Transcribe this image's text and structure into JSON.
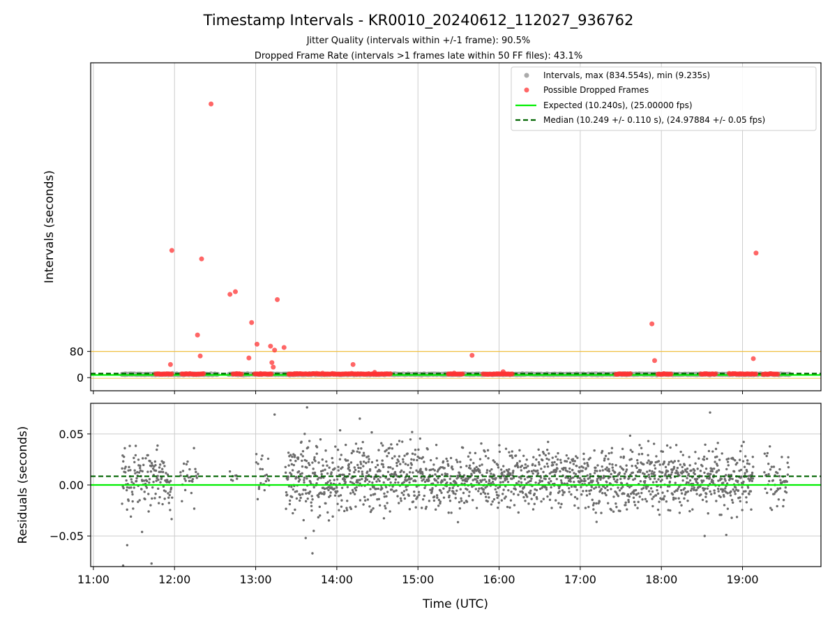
{
  "figure": {
    "title": "Timestamp Intervals - KR0010_20240612_112027_936762",
    "subtitle_1": "Jitter Quality (intervals within +/-1 frame): 90.5%",
    "subtitle_2": "Dropped Frame Rate (intervals >1 frames late within 50 FF files): 43.1%"
  },
  "colors": {
    "interval_gray": "#aaaaaa",
    "dropped_red": "#ff3333",
    "expected_green": "#00ee00",
    "median_darkgreen": "#006400",
    "threshold_yellow": "#f0c040",
    "residual_gray": "#6b6b6b",
    "grid": "#cccccc"
  },
  "chart_data": [
    {
      "id": "top",
      "type": "scatter",
      "ylabel": "Intervals (seconds)",
      "xlim": [
        "10:58",
        "19:58"
      ],
      "ylim": [
        -40,
        960
      ],
      "yticks": [
        0,
        80
      ],
      "xticks": [
        "11:00",
        "12:00",
        "13:00",
        "14:00",
        "15:00",
        "16:00",
        "17:00",
        "18:00",
        "19:00"
      ],
      "grid": "x",
      "legend_position": "top-right",
      "threshold_line": 80,
      "legend": [
        {
          "key": "intervals",
          "label": "Intervals, max (834.554s), min (9.235s)"
        },
        {
          "key": "dropped",
          "label": "Possible Dropped Frames"
        },
        {
          "key": "expected",
          "label": "Expected (10.240s), (25.00000 fps)"
        },
        {
          "key": "median",
          "label": "Median (10.249 +/- 0.110 s), (24.97884 +/- 0.05 fps)"
        }
      ],
      "expected_value": 10.24,
      "median_value": 10.249,
      "interval_segments": [
        [
          "11:21",
          "11:45"
        ],
        [
          "11:45",
          "12:32"
        ],
        [
          "12:40",
          "13:35"
        ],
        [
          "13:25",
          "19:35"
        ]
      ],
      "dropped_clusters": [
        [
          "11:46",
          "11:58"
        ],
        [
          "12:05",
          "12:22"
        ],
        [
          "12:43",
          "12:50"
        ],
        [
          "12:59",
          "13:12"
        ],
        [
          "13:24",
          "14:40"
        ],
        [
          "15:22",
          "15:33"
        ],
        [
          "15:48",
          "16:10"
        ],
        [
          "17:26",
          "17:37"
        ],
        [
          "17:57",
          "18:07"
        ],
        [
          "18:29",
          "18:40"
        ],
        [
          "18:50",
          "19:10"
        ],
        [
          "19:15",
          "19:26"
        ]
      ],
      "dropped_outliers": [
        {
          "x": "12:27",
          "y": 834.5
        },
        {
          "x": "11:58",
          "y": 388
        },
        {
          "x": "12:20",
          "y": 362
        },
        {
          "x": "19:10",
          "y": 380
        },
        {
          "x": "12:45",
          "y": 262
        },
        {
          "x": "12:41",
          "y": 254
        },
        {
          "x": "13:16",
          "y": 238
        },
        {
          "x": "12:57",
          "y": 168
        },
        {
          "x": "17:53",
          "y": 164
        },
        {
          "x": "12:17",
          "y": 130
        },
        {
          "x": "13:01",
          "y": 102
        },
        {
          "x": "13:11",
          "y": 96
        },
        {
          "x": "13:21",
          "y": 92
        },
        {
          "x": "13:14",
          "y": 84
        },
        {
          "x": "12:19",
          "y": 66
        },
        {
          "x": "15:40",
          "y": 68
        },
        {
          "x": "19:08",
          "y": 58
        },
        {
          "x": "11:57",
          "y": 40
        },
        {
          "x": "13:12",
          "y": 46
        },
        {
          "x": "13:13",
          "y": 32
        },
        {
          "x": "14:12",
          "y": 40
        },
        {
          "x": "17:55",
          "y": 52
        },
        {
          "x": "12:55",
          "y": 60
        },
        {
          "x": "16:03",
          "y": 18
        },
        {
          "x": "14:28",
          "y": 16
        }
      ]
    },
    {
      "id": "bottom",
      "type": "scatter",
      "ylabel": "Residuals (seconds)",
      "xlabel": "Time (UTC)",
      "xlim": [
        "10:58",
        "19:58"
      ],
      "ylim": [
        -0.08,
        0.08
      ],
      "yticks": [
        0.05,
        0.0,
        -0.05
      ],
      "ytick_labels": [
        "0.05",
        "0.00",
        "−0.05"
      ],
      "xticks": [
        "11:00",
        "12:00",
        "13:00",
        "14:00",
        "15:00",
        "16:00",
        "17:00",
        "18:00",
        "19:00"
      ],
      "grid": "both",
      "zero_line": 0.0,
      "median_offset": 0.0085,
      "residual_segments": [
        {
          "start": "11:21",
          "end": "11:58",
          "density": 4,
          "sd": 0.022
        },
        {
          "start": "12:04",
          "end": "12:17",
          "density": 2,
          "sd": 0.018
        },
        {
          "start": "12:40",
          "end": "12:46",
          "density": 1,
          "sd": 0.006
        },
        {
          "start": "13:00",
          "end": "13:10",
          "density": 2,
          "sd": 0.02
        },
        {
          "start": "13:22",
          "end": "14:58",
          "density": 5,
          "sd": 0.023
        },
        {
          "start": "14:58",
          "end": "16:20",
          "density": 5,
          "sd": 0.019
        },
        {
          "start": "16:20",
          "end": "19:08",
          "density": 5,
          "sd": 0.021
        },
        {
          "start": "19:16",
          "end": "19:34",
          "density": 3,
          "sd": 0.02
        }
      ],
      "residual_outliers": [
        {
          "x": "11:22",
          "y": -0.079
        },
        {
          "x": "11:25",
          "y": -0.059
        },
        {
          "x": "11:43",
          "y": -0.077
        },
        {
          "x": "11:36",
          "y": -0.046
        },
        {
          "x": "13:14",
          "y": 0.069
        },
        {
          "x": "13:38",
          "y": 0.076
        },
        {
          "x": "13:42",
          "y": -0.067
        },
        {
          "x": "13:37",
          "y": -0.052
        },
        {
          "x": "14:17",
          "y": 0.065
        },
        {
          "x": "18:32",
          "y": -0.05
        },
        {
          "x": "18:36",
          "y": 0.071
        },
        {
          "x": "18:48",
          "y": -0.049
        }
      ]
    }
  ]
}
